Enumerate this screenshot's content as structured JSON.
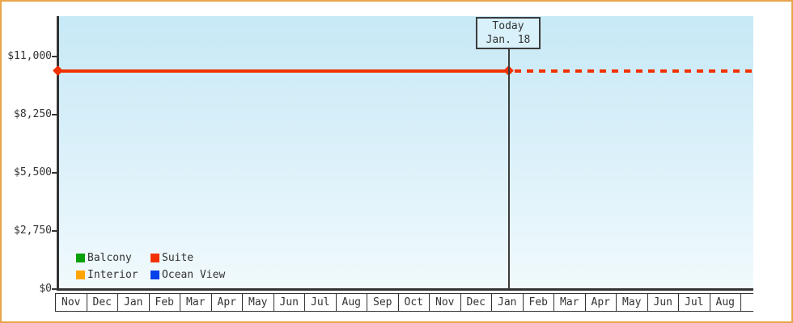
{
  "chart": {
    "today_box": {
      "line1": "Today",
      "line2": "Jan. 18"
    },
    "y_ticks": [
      "$11,000",
      "$8,250",
      "$5,500",
      "$2,750",
      "$0"
    ],
    "x_months": [
      "Nov",
      "Dec",
      "Jan",
      "Feb",
      "Mar",
      "Apr",
      "May",
      "Jun",
      "Jul",
      "Aug",
      "Sep",
      "Oct",
      "Nov",
      "Dec",
      "Jan",
      "Feb",
      "Mar",
      "Apr",
      "May",
      "Jun",
      "Jul",
      "Aug"
    ],
    "legend": [
      {
        "label": "Balcony",
        "color": "#0aa00a"
      },
      {
        "label": "Suite",
        "color": "#f23000"
      },
      {
        "label": "Interior",
        "color": "#ffa400"
      },
      {
        "label": "Ocean View",
        "color": "#0640e8"
      }
    ],
    "colors": {
      "frame_border": "#e8a44c",
      "axis": "#333333",
      "plot_bg_top": "#c7e9f6",
      "plot_bg_bottom": "#f1fafd",
      "suite_line": "#f23000",
      "today_line": "#3c3c3c",
      "today_box_fill": "#d9f1fb"
    }
  },
  "chart_data": {
    "type": "line",
    "x_categories": [
      "Nov",
      "Dec",
      "Jan",
      "Feb",
      "Mar",
      "Apr",
      "May",
      "Jun",
      "Jul",
      "Aug",
      "Sep",
      "Oct",
      "Nov",
      "Dec",
      "Jan",
      "Feb",
      "Mar",
      "Apr",
      "May",
      "Jun",
      "Jul",
      "Aug"
    ],
    "y_tick_labels": [
      "$0",
      "$2,750",
      "$5,500",
      "$8,250",
      "$11,000"
    ],
    "y_tick_values": [
      0,
      2750,
      5500,
      8250,
      11000
    ],
    "ylim": [
      0,
      12900
    ],
    "grid": false,
    "legend_position": "bottom-left-inside",
    "series": [
      {
        "name": "Suite",
        "color": "#f23000",
        "constant_value": 10300,
        "segments": [
          {
            "style": "solid",
            "from": "Nov (start)",
            "to": "Today (Jan. 18)",
            "value": 10300
          },
          {
            "style": "dotted",
            "from": "Today (Jan. 18)",
            "to": "Aug (end)",
            "value": 10300
          }
        ],
        "markers": [
          {
            "at": "Nov (start)",
            "shape": "diamond",
            "value": 10300
          },
          {
            "at": "Today (Jan. 18)",
            "shape": "diamond",
            "value": 10300
          }
        ]
      },
      {
        "name": "Balcony",
        "color": "#0aa00a",
        "values": []
      },
      {
        "name": "Interior",
        "color": "#ffa400",
        "values": []
      },
      {
        "name": "Ocean View",
        "color": "#0640e8",
        "values": []
      }
    ],
    "annotations": [
      {
        "type": "vertical-line-with-label",
        "label": [
          "Today",
          "Jan. 18"
        ],
        "x_position": "18th of second Jan column"
      }
    ]
  }
}
